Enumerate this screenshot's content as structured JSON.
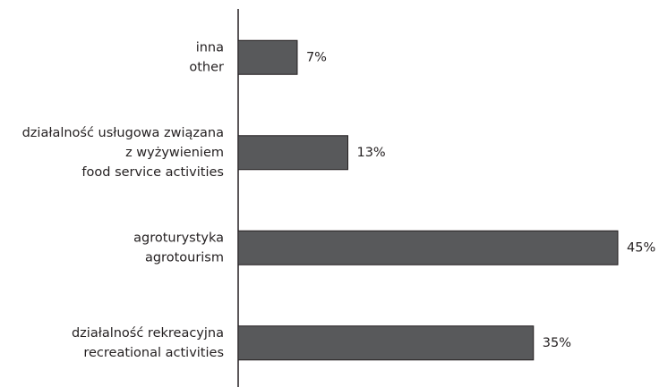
{
  "chart_data": {
    "type": "bar",
    "orientation": "horizontal",
    "categories": [
      [
        "inna",
        "other"
      ],
      [
        "działalność usługowa związana",
        "z wyżywieniem",
        "food service activities"
      ],
      [
        "agroturystyka",
        "agrotourism"
      ],
      [
        "działalność rekreacyjna",
        "recreational activities"
      ]
    ],
    "values": [
      7,
      13,
      45,
      35
    ],
    "value_labels": [
      "7%",
      "13%",
      "45%",
      "35%"
    ],
    "color": "#58595b"
  }
}
